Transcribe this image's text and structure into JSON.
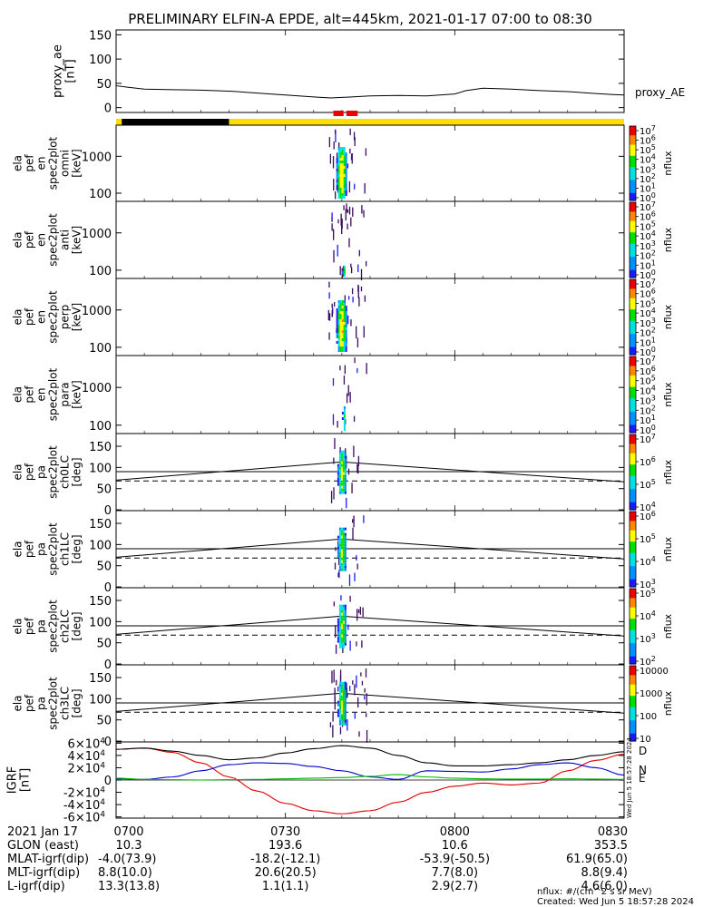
{
  "title": "PRELIMINARY ELFIN-A EPDE, alt=445km, 2021-01-17 07:00 to 08:30",
  "time_ticks": [
    "0700",
    "0730",
    "0800",
    "0830"
  ],
  "footer": {
    "note1": "nflux: #/(cm^2 s sr MeV)",
    "note2": "Created: Wed Jun  5 18:57:28 2024",
    "side_stamp": "Wed Jun  5 18:57:28 2024"
  },
  "orbit_table": {
    "rows": [
      {
        "label": "2021 Jan 17",
        "values": [
          "0700",
          "0730",
          "0800",
          "0830"
        ]
      },
      {
        "label": "GLON (east)",
        "values": [
          "10.3",
          "193.6",
          "10.6",
          "353.5"
        ]
      },
      {
        "label": "MLAT-igrf(dip)",
        "values": [
          "-4.0(73.9)",
          "-18.2(-12.1)",
          "-53.9(-50.5)",
          "61.9(65.0)"
        ]
      },
      {
        "label": "MLT-igrf(dip)",
        "values": [
          "8.8(10.0)",
          "20.6(20.5)",
          "7.7(8.0)",
          "8.8(9.4)"
        ]
      },
      {
        "label": "L-igrf(dip)",
        "values": [
          "13.3(13.8)",
          "1.1(1.1)",
          "2.9(2.7)",
          "4.6(6.0)"
        ]
      }
    ]
  },
  "colors": {
    "fgm_red": "#dd0000",
    "fgm_blue": "#0000cc",
    "fgm_green": "#00bb00",
    "sunlit_bar": "#ffdd00",
    "shadow_bar": "#000000",
    "science_zone": "#ee0000"
  },
  "chart_data": [
    {
      "type": "line",
      "ylabel": [
        "proxy_ae",
        "[nT]"
      ],
      "legend": "proxy_AE",
      "ylim": [
        -10,
        160
      ],
      "yticks": [
        "0",
        "50",
        "100",
        "150"
      ],
      "xlim_min": [
        0,
        90
      ],
      "series": [
        {
          "name": "proxy_AE",
          "x": [
            0,
            2,
            5,
            10,
            15,
            20,
            25,
            30,
            35,
            38,
            40,
            45,
            50,
            55,
            60,
            62,
            65,
            70,
            75,
            80,
            85,
            88,
            90
          ],
          "y": [
            45,
            42,
            38,
            37,
            36,
            34,
            30,
            26,
            22,
            20,
            21,
            24,
            25,
            24,
            28,
            35,
            40,
            38,
            35,
            33,
            29,
            27,
            26
          ]
        }
      ],
      "status_bar": {
        "shadow": [
          [
            1,
            20
          ]
        ],
        "sunlit": [
          [
            0,
            1
          ],
          [
            20,
            90
          ]
        ],
        "science_zones": [
          [
            38.5,
            40.3
          ],
          [
            40.8,
            42.8
          ]
        ]
      }
    },
    {
      "type": "heatmap",
      "ylabel": [
        "ela",
        "pef",
        "en",
        "spec2plot",
        "omni",
        "[keV]"
      ],
      "ylim_log": [
        60,
        7000
      ],
      "yticks": [
        "100",
        "1000"
      ],
      "colorbar_label": "nflux",
      "colorbar_ticks": [
        "10",
        "10",
        "10",
        "10",
        "10",
        "10",
        "10",
        "10"
      ],
      "colorbar_exponents": [
        "7",
        "6",
        "5",
        "4",
        "3",
        "2",
        "1",
        "0"
      ]
    },
    {
      "type": "heatmap",
      "ylabel": [
        "ela",
        "pef",
        "en",
        "spec2plot",
        "anti",
        "[keV]"
      ],
      "ylim_log": [
        60,
        7000
      ],
      "yticks": [
        "100",
        "1000"
      ],
      "colorbar_label": "nflux",
      "colorbar_ticks": [
        "10",
        "10",
        "10",
        "10",
        "10",
        "10",
        "10",
        "10"
      ],
      "colorbar_exponents": [
        "7",
        "6",
        "5",
        "4",
        "3",
        "2",
        "1",
        "0"
      ]
    },
    {
      "type": "heatmap",
      "ylabel": [
        "ela",
        "pef",
        "en",
        "spec2plot",
        "perp",
        "[keV]"
      ],
      "ylim_log": [
        60,
        7000
      ],
      "yticks": [
        "100",
        "1000"
      ],
      "colorbar_label": "nflux",
      "colorbar_ticks": [
        "10",
        "10",
        "10",
        "10",
        "10",
        "10",
        "10",
        "10"
      ],
      "colorbar_exponents": [
        "7",
        "6",
        "5",
        "4",
        "3",
        "2",
        "1",
        "0"
      ]
    },
    {
      "type": "heatmap",
      "ylabel": [
        "ela",
        "pef",
        "en",
        "spec2plot",
        "para",
        "[keV]"
      ],
      "ylim_log": [
        60,
        7000
      ],
      "yticks": [
        "100",
        "1000"
      ],
      "colorbar_label": "nflux",
      "colorbar_ticks": [
        "10",
        "10",
        "10",
        "10",
        "10",
        "10",
        "10",
        "10"
      ],
      "colorbar_exponents": [
        "7",
        "6",
        "5",
        "4",
        "3",
        "2",
        "1",
        "0"
      ]
    },
    {
      "type": "heatmap",
      "ylabel": [
        "ela",
        "pef",
        "pa",
        "spec2plot",
        "ch0LC",
        "[deg]"
      ],
      "ylim": [
        -2,
        180
      ],
      "yticks": [
        "0",
        "50",
        "100",
        "150"
      ],
      "colorbar_label": "nflux",
      "colorbar_ticks": [
        "10",
        "10",
        "10",
        "10"
      ],
      "colorbar_exponents": [
        "7",
        "6",
        "5",
        "4"
      ]
    },
    {
      "type": "heatmap",
      "ylabel": [
        "ela",
        "pef",
        "pa",
        "spec2plot",
        "ch1LC",
        "[deg]"
      ],
      "ylim": [
        -2,
        180
      ],
      "yticks": [
        "0",
        "50",
        "100",
        "150"
      ],
      "colorbar_label": "nflux",
      "colorbar_ticks": [
        "10",
        "10",
        "10",
        "10"
      ],
      "colorbar_exponents": [
        "6",
        "5",
        "4",
        "3"
      ]
    },
    {
      "type": "heatmap",
      "ylabel": [
        "ela",
        "pef",
        "pa",
        "spec2plot",
        "ch2LC",
        "[deg]"
      ],
      "ylim": [
        -2,
        180
      ],
      "yticks": [
        "0",
        "50",
        "100",
        "150"
      ],
      "colorbar_label": "nflux",
      "colorbar_ticks": [
        "10",
        "10",
        "10",
        "10"
      ],
      "colorbar_exponents": [
        "5",
        "4",
        "3",
        "2"
      ]
    },
    {
      "type": "heatmap",
      "ylabel": [
        "ela",
        "pef",
        "pa",
        "spec2plot",
        "ch3LC",
        "[deg]"
      ],
      "ylim": [
        -2,
        180
      ],
      "yticks": [
        "0",
        "50",
        "100",
        "150"
      ],
      "colorbar_label": "nflux",
      "colorbar_ticks": [
        "10000",
        "1000",
        "100",
        "10"
      ]
    },
    {
      "type": "line",
      "ylabel": [
        "IGRF",
        "[nT]"
      ],
      "ylim": [
        -62000,
        62000
      ],
      "yticks_mantissa": [
        "6",
        "4",
        "2",
        "0",
        "-2",
        "-4",
        "-6"
      ],
      "yticks_value": [
        60000,
        40000,
        20000,
        0,
        -20000,
        -40000,
        -60000
      ],
      "legend": [
        "D",
        "N",
        "E"
      ],
      "series": [
        {
          "name": "D",
          "x": [
            0,
            5,
            10,
            15,
            20,
            25,
            30,
            35,
            40,
            45,
            50,
            55,
            60,
            65,
            70,
            75,
            80,
            85,
            90
          ],
          "y": [
            50000,
            52000,
            45000,
            28000,
            5000,
            -18000,
            -38000,
            -50000,
            -55000,
            -50000,
            -36000,
            -20000,
            -10000,
            -5000,
            -8000,
            -5000,
            15000,
            32000,
            42000
          ]
        },
        {
          "name": "N",
          "x": [
            0,
            5,
            10,
            15,
            20,
            25,
            30,
            35,
            40,
            45,
            50,
            55,
            60,
            65,
            70,
            75,
            80,
            85,
            90
          ],
          "y": [
            2000,
            1000,
            5000,
            15000,
            25000,
            28000,
            27000,
            22000,
            15000,
            5000,
            1000,
            15000,
            14000,
            13000,
            18000,
            25000,
            28000,
            20000,
            8000
          ]
        },
        {
          "name": "E",
          "x": [
            0,
            5,
            10,
            15,
            20,
            25,
            30,
            35,
            40,
            45,
            50,
            55,
            60,
            65,
            70,
            75,
            80,
            85,
            90
          ],
          "y": [
            3000,
            1000,
            500,
            0,
            500,
            1000,
            2000,
            3000,
            4000,
            6000,
            9000,
            5000,
            3000,
            2000,
            1500,
            1500,
            2000,
            1500,
            1000
          ]
        },
        {
          "name": "",
          "x": [
            0,
            5,
            10,
            15,
            20,
            25,
            30,
            35,
            40,
            45,
            50,
            55,
            60,
            65,
            70,
            75,
            80,
            85,
            90
          ],
          "y": [
            50000,
            52000,
            47000,
            40000,
            33000,
            36000,
            44000,
            51000,
            56000,
            52000,
            40000,
            28000,
            23000,
            23000,
            25000,
            28000,
            33000,
            40000,
            46000
          ]
        }
      ]
    }
  ]
}
